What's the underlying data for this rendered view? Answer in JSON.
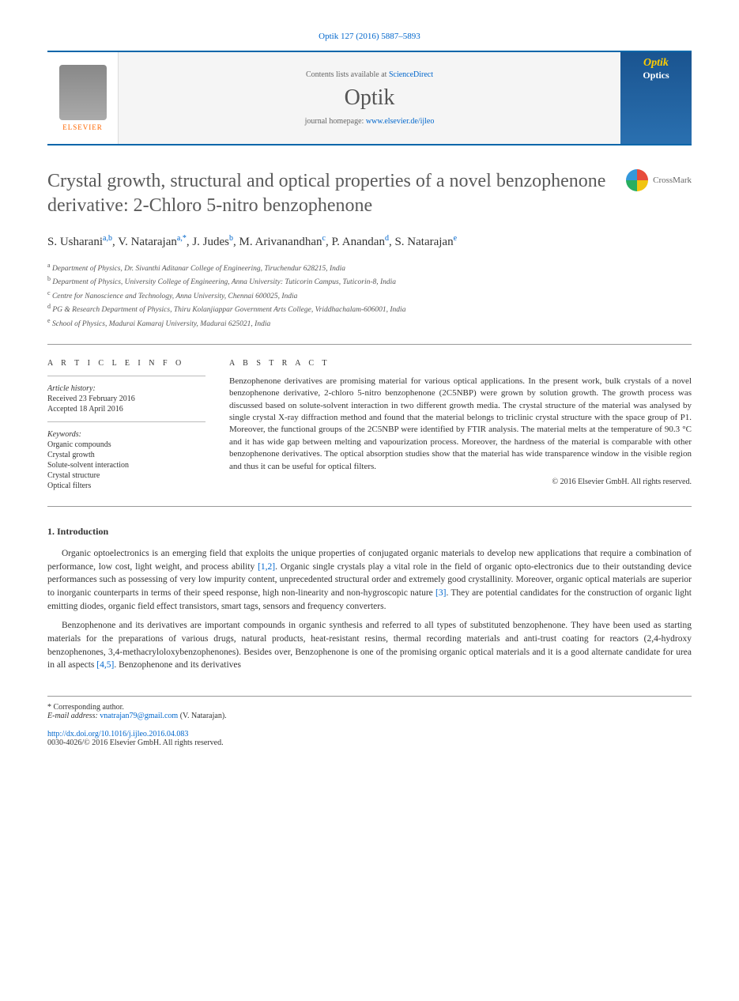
{
  "header": {
    "citation": "Optik 127 (2016) 5887–5893",
    "contents_prefix": "Contents lists available at ",
    "contents_link": "ScienceDirect",
    "journal_name": "Optik",
    "homepage_prefix": "journal homepage: ",
    "homepage_url": "www.elsevier.de/ijleo",
    "publisher_logo": "ELSEVIER",
    "cover_title1": "Optik",
    "cover_title2": "Optics"
  },
  "title": "Crystal growth, structural and optical properties of a novel benzophenone derivative: 2-Chloro 5-nitro benzophenone",
  "crossmark_label": "CrossMark",
  "authors_html": "S. Usharani",
  "authors": [
    {
      "name": "S. Usharani",
      "aff": "a,b"
    },
    {
      "name": "V. Natarajan",
      "aff": "a,*"
    },
    {
      "name": "J. Judes",
      "aff": "b"
    },
    {
      "name": "M. Arivanandhan",
      "aff": "c"
    },
    {
      "name": "P. Anandan",
      "aff": "d"
    },
    {
      "name": "S. Natarajan",
      "aff": "e"
    }
  ],
  "affiliations": [
    {
      "sup": "a",
      "text": "Department of Physics, Dr. Sivanthi Aditanar College of Engineering, Tiruchendur 628215, India"
    },
    {
      "sup": "b",
      "text": "Department of Physics, University College of Engineering, Anna University: Tuticorin Campus, Tuticorin-8, India"
    },
    {
      "sup": "c",
      "text": "Centre for Nanoscience and Technology, Anna University, Chennai 600025, India"
    },
    {
      "sup": "d",
      "text": "PG & Research Department of Physics, Thiru Kolanjiappar Government Arts College, Vriddhachalam-606001, India"
    },
    {
      "sup": "e",
      "text": "School of Physics, Madurai Kamaraj University, Madurai 625021, India"
    }
  ],
  "article_info": {
    "heading": "A R T I C L E   I N F O",
    "history_label": "Article history:",
    "received": "Received 23 February 2016",
    "accepted": "Accepted 18 April 2016",
    "keywords_label": "Keywords:",
    "keywords": [
      "Organic compounds",
      "Crystal growth",
      "Solute-solvent interaction",
      "Crystal structure",
      "Optical filters"
    ]
  },
  "abstract": {
    "heading": "A B S T R A C T",
    "text": "Benzophenone derivatives are promising material for various optical applications. In the present work, bulk crystals of a novel benzophenone derivative, 2-chloro 5-nitro benzophenone (2C5NBP) were grown by solution growth. The growth process was discussed based on solute-solvent interaction in two different growth media. The crystal structure of the material was analysed by single crystal X-ray diffraction method and found that the material belongs to triclinic crystal structure with the space group of P1. Moreover, the functional groups of the 2C5NBP were identified by FTIR analysis. The material melts at the temperature of 90.3 °C and it has wide gap between melting and vapourization process. Moreover, the hardness of the material is comparable with other benzophenone derivatives. The optical absorption studies show that the material has wide transparence window in the visible region and thus it can be useful for optical filters.",
    "copyright": "© 2016 Elsevier GmbH. All rights reserved."
  },
  "sections": {
    "intro_heading": "1.  Introduction",
    "para1_pre": "Organic optoelectronics is an emerging field that exploits the unique properties of conjugated organic materials to develop new applications that require a combination of performance, low cost, light weight, and process ability ",
    "ref12": "[1,2]",
    "para1_mid": ". Organic single crystals play a vital role in the field of organic opto-electronics due to their outstanding device performances such as possessing of very low impurity content, unprecedented structural order and extremely good crystallinity. Moreover, organic optical materials are superior to inorganic counterparts in terms of their speed response, high non-linearity and non-hygroscopic nature ",
    "ref3": "[3]",
    "para1_end": ". They are potential candidates for the construction of organic light emitting diodes, organic field effect transistors, smart tags, sensors and frequency converters.",
    "para2_pre": "Benzophenone and its derivatives are important compounds in organic synthesis and referred to all types of substituted benzophenone. They have been used as starting materials for the preparations of various drugs, natural products, heat-resistant resins, thermal recording materials and anti-trust coating for reactors (2,4-hydroxy benzophenones, 3,4-methacryloloxybenzophenones). Besides over, Benzophenone is one of the promising organic optical materials and it is a good alternate candidate for urea in all aspects ",
    "ref45": "[4,5]",
    "para2_end": ". Benzophenone and its derivatives"
  },
  "footer": {
    "corr_label": "* Corresponding author.",
    "email_label": "E-mail address:",
    "email": "vnatrajan79@gmail.com",
    "email_name": "(V. Natarajan).",
    "doi": "http://dx.doi.org/10.1016/j.ijleo.2016.04.083",
    "rights": "0030-4026/© 2016 Elsevier GmbH. All rights reserved."
  }
}
